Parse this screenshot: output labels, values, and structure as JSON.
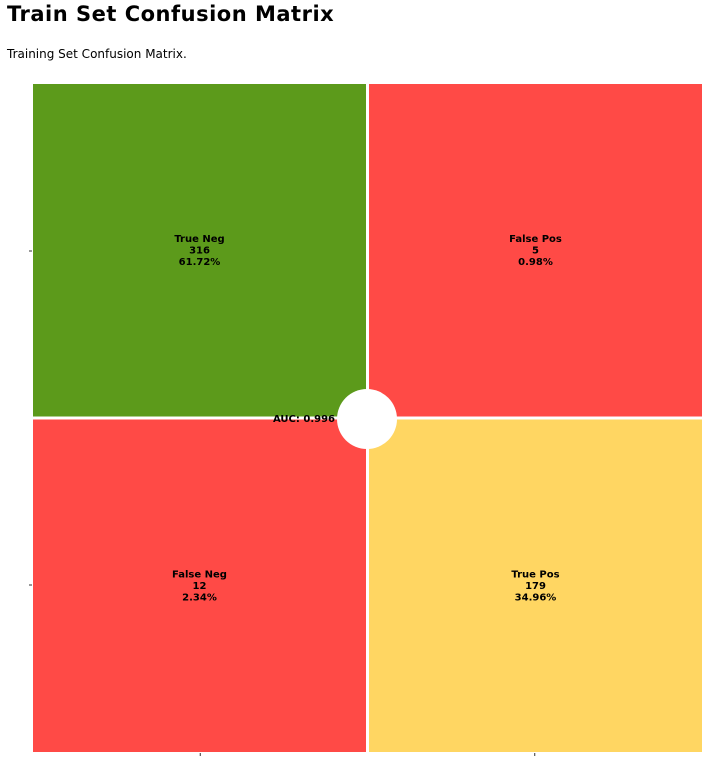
{
  "title": "Train Set Confusion Matrix",
  "subtitle": "Training Set Confusion Matrix.",
  "chart_data": {
    "type": "heatmap",
    "title": "Train Set Confusion Matrix",
    "subtitle": "Training Set Confusion Matrix.",
    "rows": 2,
    "cols": 2,
    "x_tick_labels": [
      "",
      ""
    ],
    "y_tick_labels": [
      "",
      ""
    ],
    "cells": [
      {
        "row": 0,
        "col": 0,
        "label": "True Neg",
        "count": 316,
        "percent": "61.72%",
        "color": "#5c9a1b",
        "text_color": "#000000"
      },
      {
        "row": 0,
        "col": 1,
        "label": "False Pos",
        "count": 5,
        "percent": "0.98%",
        "color": "#ff4a46",
        "text_color": "#000000"
      },
      {
        "row": 1,
        "col": 0,
        "label": "False Neg",
        "count": 12,
        "percent": "2.34%",
        "color": "#ff4a46",
        "text_color": "#000000"
      },
      {
        "row": 1,
        "col": 1,
        "label": "True Pos",
        "count": 179,
        "percent": "34.96%",
        "color": "#ffd662",
        "text_color": "#000000"
      }
    ],
    "annotation": {
      "label": "AUC: 0.996"
    },
    "grid": false,
    "legend": "none"
  }
}
